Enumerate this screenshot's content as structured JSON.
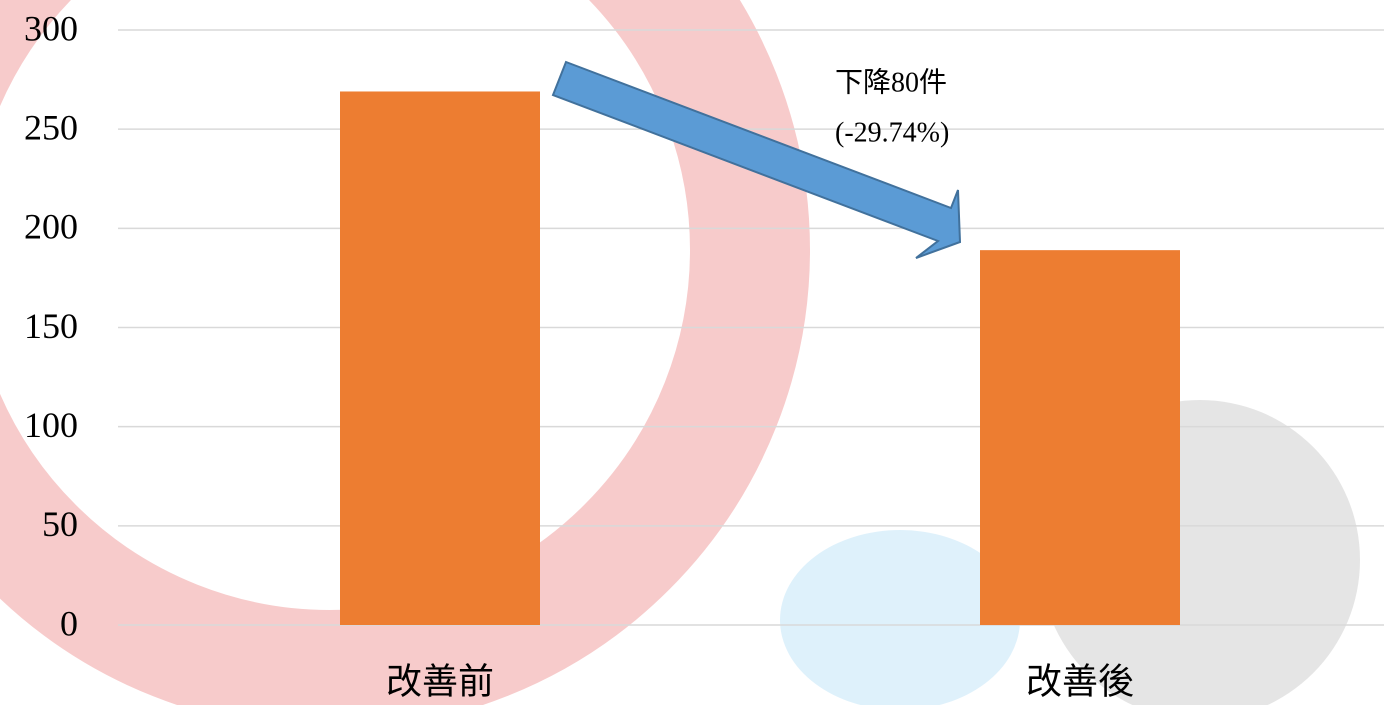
{
  "chart_data": {
    "type": "bar",
    "categories": [
      "改善前",
      "改善後"
    ],
    "values": [
      269,
      189
    ],
    "color": "#ed7d31",
    "ylim": [
      0,
      300
    ],
    "yticks": [
      0,
      50,
      100,
      150,
      200,
      250,
      300
    ],
    "grid": true,
    "annotations": [
      "下降80件",
      "(-29.74%)"
    ]
  }
}
